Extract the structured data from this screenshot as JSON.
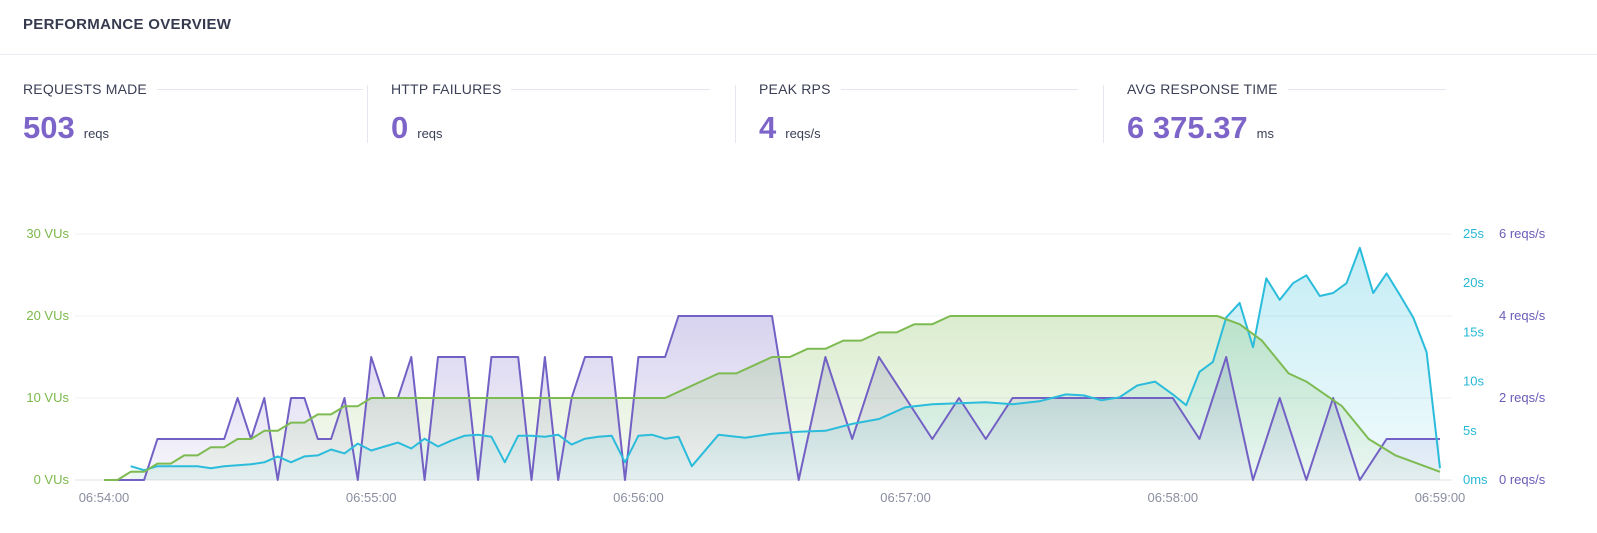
{
  "header": {
    "title": "PERFORMANCE OVERVIEW"
  },
  "stats": [
    {
      "label": "REQUESTS MADE",
      "value": "503",
      "unit": "reqs"
    },
    {
      "label": "HTTP FAILURES",
      "value": "0",
      "unit": "reqs"
    },
    {
      "label": "PEAK RPS",
      "value": "4",
      "unit": "reqs/s"
    },
    {
      "label": "AVG RESPONSE TIME",
      "value": "6 375.37",
      "unit": "ms"
    }
  ],
  "colors": {
    "vus": "#7dbb52",
    "response_time": "#2bbcdb",
    "rps": "#7360c4",
    "value_accent": "#7d64c8"
  },
  "chart_data": {
    "type": "line",
    "grid": true,
    "x_ticks": [
      "06:54:00",
      "06:55:00",
      "06:56:00",
      "06:57:00",
      "06:58:00",
      "06:59:00"
    ],
    "axes": {
      "vus": {
        "ticks": [
          "0 VUs",
          "10 VUs",
          "20 VUs",
          "30 VUs"
        ],
        "range": [
          0,
          30
        ]
      },
      "response_time": {
        "ticks": [
          "0ms",
          "5s",
          "10s",
          "15s",
          "20s",
          "25s"
        ],
        "range": [
          0,
          25
        ]
      },
      "rps": {
        "ticks": [
          "0 reqs/s",
          "2 reqs/s",
          "4 reqs/s",
          "6 reqs/s"
        ],
        "range": [
          0,
          6
        ]
      }
    },
    "x_range_seconds": [
      0,
      300
    ],
    "series": [
      {
        "key": "vus",
        "axis": "vus",
        "area": true,
        "x": [
          0,
          3,
          6,
          9,
          12,
          15,
          18,
          21,
          24,
          27,
          30,
          33,
          36,
          39,
          42,
          45,
          48,
          51,
          54,
          57,
          60,
          66,
          72,
          78,
          84,
          90,
          96,
          102,
          108,
          114,
          120,
          126,
          130,
          134,
          138,
          142,
          146,
          150,
          154,
          158,
          162,
          166,
          170,
          174,
          178,
          182,
          186,
          190,
          195,
          200,
          210,
          220,
          230,
          240,
          250,
          255,
          260,
          266,
          270,
          278,
          284,
          290,
          300
        ],
        "y": [
          0,
          0,
          1,
          1,
          2,
          2,
          3,
          3,
          4,
          4,
          5,
          5,
          6,
          6,
          7,
          7,
          8,
          8,
          9,
          9,
          10,
          10,
          10,
          10,
          10,
          10,
          10,
          10,
          10,
          10,
          10,
          10,
          11,
          12,
          13,
          13,
          14,
          15,
          15,
          16,
          16,
          17,
          17,
          18,
          18,
          19,
          19,
          20,
          20,
          20,
          20,
          20,
          20,
          20,
          20,
          19,
          17,
          13,
          12,
          9,
          5,
          3,
          1
        ]
      },
      {
        "key": "response_time",
        "axis": "response_time",
        "area": true,
        "x": [
          6,
          9,
          12,
          15,
          18,
          21,
          24,
          27,
          30,
          33,
          36,
          39,
          42,
          45,
          48,
          51,
          54,
          57,
          60,
          63,
          66,
          69,
          72,
          75,
          78,
          81,
          84,
          87,
          90,
          93,
          96,
          99,
          102,
          105,
          108,
          111,
          114,
          117,
          120,
          123,
          126,
          129,
          132,
          138,
          144,
          150,
          156,
          162,
          168,
          174,
          180,
          186,
          192,
          198,
          204,
          210,
          216,
          220,
          224,
          228,
          232,
          236,
          240,
          243,
          246,
          249,
          252,
          255,
          258,
          261,
          264,
          267,
          270,
          273,
          276,
          279,
          282,
          285,
          288,
          291,
          294,
          297,
          300
        ],
        "y": [
          1.4,
          1.0,
          1.4,
          1.4,
          1.4,
          1.4,
          1.2,
          1.4,
          1.5,
          1.6,
          1.8,
          2.4,
          1.8,
          2.4,
          2.5,
          3.1,
          2.7,
          3.7,
          3.0,
          3.4,
          3.8,
          3.2,
          4.2,
          3.4,
          4.0,
          4.5,
          4.6,
          4.4,
          1.8,
          4.5,
          4.5,
          4.4,
          4.6,
          3.6,
          4.2,
          4.4,
          4.5,
          1.8,
          4.5,
          4.6,
          4.2,
          4.4,
          1.4,
          4.6,
          4.3,
          4.7,
          4.9,
          5.0,
          5.7,
          6.2,
          7.4,
          7.7,
          7.8,
          7.9,
          7.7,
          8.0,
          8.7,
          8.6,
          8.1,
          8.4,
          9.6,
          10.0,
          8.7,
          7.6,
          11.0,
          12.0,
          16.5,
          18.0,
          13.5,
          20.5,
          18.3,
          20.0,
          20.8,
          18.7,
          19.0,
          20.0,
          23.6,
          19.0,
          21.0,
          18.8,
          16.5,
          13.0,
          1.2
        ]
      },
      {
        "key": "rps",
        "axis": "rps",
        "area": true,
        "x": [
          0,
          3,
          6,
          9,
          12,
          15,
          18,
          21,
          24,
          27,
          30,
          33,
          36,
          39,
          42,
          45,
          48,
          51,
          54,
          57,
          60,
          63,
          66,
          69,
          72,
          75,
          78,
          81,
          84,
          87,
          90,
          93,
          96,
          99,
          102,
          105,
          108,
          111,
          114,
          117,
          120,
          123,
          126,
          129,
          132,
          138,
          144,
          150,
          156,
          162,
          168,
          174,
          180,
          186,
          192,
          198,
          204,
          210,
          216,
          222,
          228,
          234,
          240,
          246,
          252,
          258,
          264,
          270,
          276,
          282,
          288,
          294,
          300
        ],
        "y": [
          0,
          0,
          0,
          0,
          1,
          1,
          1,
          1,
          1,
          1,
          2,
          1,
          2,
          0,
          2,
          2,
          1,
          1,
          2,
          0,
          3,
          2,
          2,
          3,
          0,
          3,
          3,
          3,
          0,
          3,
          3,
          3,
          0,
          3,
          0,
          2,
          3,
          3,
          3,
          0,
          3,
          3,
          3,
          4,
          4,
          4,
          4,
          4,
          0,
          3,
          1,
          3,
          2,
          1,
          2,
          1,
          2,
          2,
          2,
          2,
          2,
          2,
          2,
          1,
          3,
          0,
          2,
          0,
          2,
          0,
          1,
          1,
          1
        ]
      }
    ]
  }
}
